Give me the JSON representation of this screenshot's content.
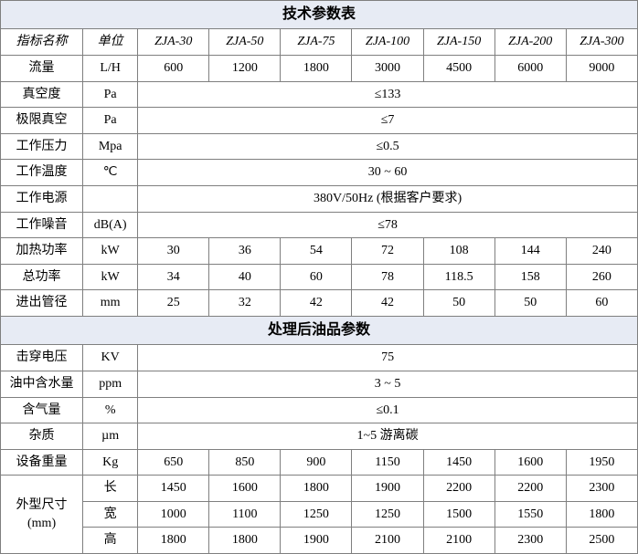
{
  "table": {
    "title1": "技术参数表",
    "title2": "处理后油品参数",
    "header": [
      "指标名称",
      "单位",
      "ZJA-30",
      "ZJA-50",
      "ZJA-75",
      "ZJA-100",
      "ZJA-150",
      "ZJA-200",
      "ZJA-300"
    ],
    "rows1": [
      {
        "name": "流量",
        "unit": "L/H",
        "vals": [
          "600",
          "1200",
          "1800",
          "3000",
          "4500",
          "6000",
          "9000"
        ]
      },
      {
        "name": "真空度",
        "unit": "Pa",
        "span": "≤133"
      },
      {
        "name": "极限真空",
        "unit": "Pa",
        "span": "≤7"
      },
      {
        "name": "工作压力",
        "unit": "Mpa",
        "span": "≤0.5"
      },
      {
        "name": "工作温度",
        "unit": "℃",
        "span": "30 ~ 60"
      },
      {
        "name": "工作电源",
        "unit": "",
        "span": "380V/50Hz (根据客户要求)"
      },
      {
        "name": "工作噪音",
        "unit": "dB(A)",
        "span": "≤78"
      },
      {
        "name": "加热功率",
        "unit": "kW",
        "vals": [
          "30",
          "36",
          "54",
          "72",
          "108",
          "144",
          "240"
        ]
      },
      {
        "name": "总功率",
        "unit": "kW",
        "vals": [
          "34",
          "40",
          "60",
          "78",
          "118.5",
          "158",
          "260"
        ]
      },
      {
        "name": "进出管径",
        "unit": "mm",
        "vals": [
          "25",
          "32",
          "42",
          "42",
          "50",
          "50",
          "60"
        ]
      }
    ],
    "rows2": [
      {
        "name": "击穿电压",
        "unit": "KV",
        "span": "75"
      },
      {
        "name": "油中含水量",
        "unit": "ppm",
        "span": "3 ~ 5"
      },
      {
        "name": "含气量",
        "unit": "%",
        "span": "≤0.1"
      },
      {
        "name": "杂质",
        "unit": "µm",
        "span": "1~5 游离碳"
      },
      {
        "name": "设备重量",
        "unit": "Kg",
        "vals": [
          "650",
          "850",
          "900",
          "1150",
          "1450",
          "1600",
          "1950"
        ]
      }
    ],
    "dims": {
      "name": "外型尺寸\n(mm)",
      "sub": [
        {
          "label": "长",
          "vals": [
            "1450",
            "1600",
            "1800",
            "1900",
            "2200",
            "2200",
            "2300"
          ]
        },
        {
          "label": "宽",
          "vals": [
            "1000",
            "1100",
            "1250",
            "1250",
            "1500",
            "1550",
            "1800"
          ]
        },
        {
          "label": "高",
          "vals": [
            "1800",
            "1800",
            "1900",
            "2100",
            "2100",
            "2300",
            "2500"
          ]
        }
      ]
    },
    "colors": {
      "title_bg": "#e7ebf4",
      "border": "#7f7f7f",
      "text": "#000000",
      "bg": "#ffffff"
    },
    "font": {
      "family": "SimSun",
      "size_body": 14,
      "size_title": 16
    }
  }
}
